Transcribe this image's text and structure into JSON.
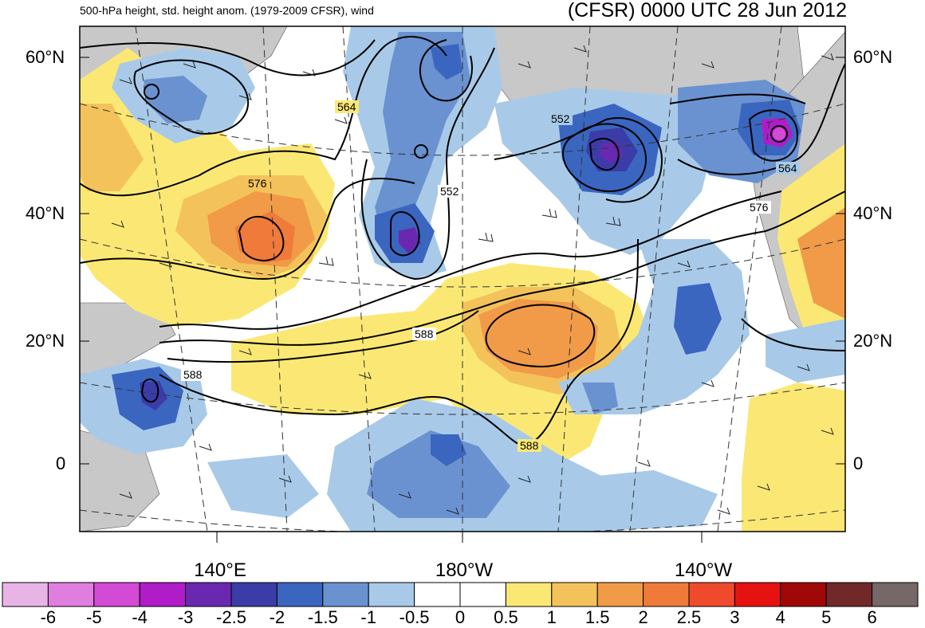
{
  "header": {
    "subtitle": "500-hPa height, std. height anom. (1979-2009 CFSR), wind",
    "title": "(CFSR) 0000 UTC 28 Jun 2012"
  },
  "axes": {
    "lat_labels": [
      "60°N",
      "40°N",
      "20°N",
      "0"
    ],
    "lon_labels": [
      "140°E",
      "180°W",
      "140°W"
    ]
  },
  "contour_labels": [
    "564",
    "552",
    "576",
    "552",
    "564",
    "576",
    "588",
    "588",
    "588"
  ],
  "colorbar": {
    "labels": [
      "-6",
      "-5",
      "-4",
      "-3",
      "-2.5",
      "-2",
      "-1.5",
      "-1",
      "-0.5",
      "0",
      "0.5",
      "1",
      "1.5",
      "2",
      "2.5",
      "3",
      "4",
      "5",
      "6"
    ],
    "colors": [
      "#e8b4e6",
      "#e07ee0",
      "#d34ad4",
      "#b01cc8",
      "#6a28b0",
      "#3c3ca8",
      "#3a66c0",
      "#6a92d0",
      "#a8cae8",
      "#ffffff",
      "#ffffff",
      "#fbe874",
      "#f4c25a",
      "#f19a48",
      "#ef7a3a",
      "#f04a2c",
      "#e61212",
      "#a00808",
      "#702828",
      "#766866"
    ]
  },
  "colors": {
    "land": "#c8c8c8",
    "ocean": "#ffffff"
  }
}
